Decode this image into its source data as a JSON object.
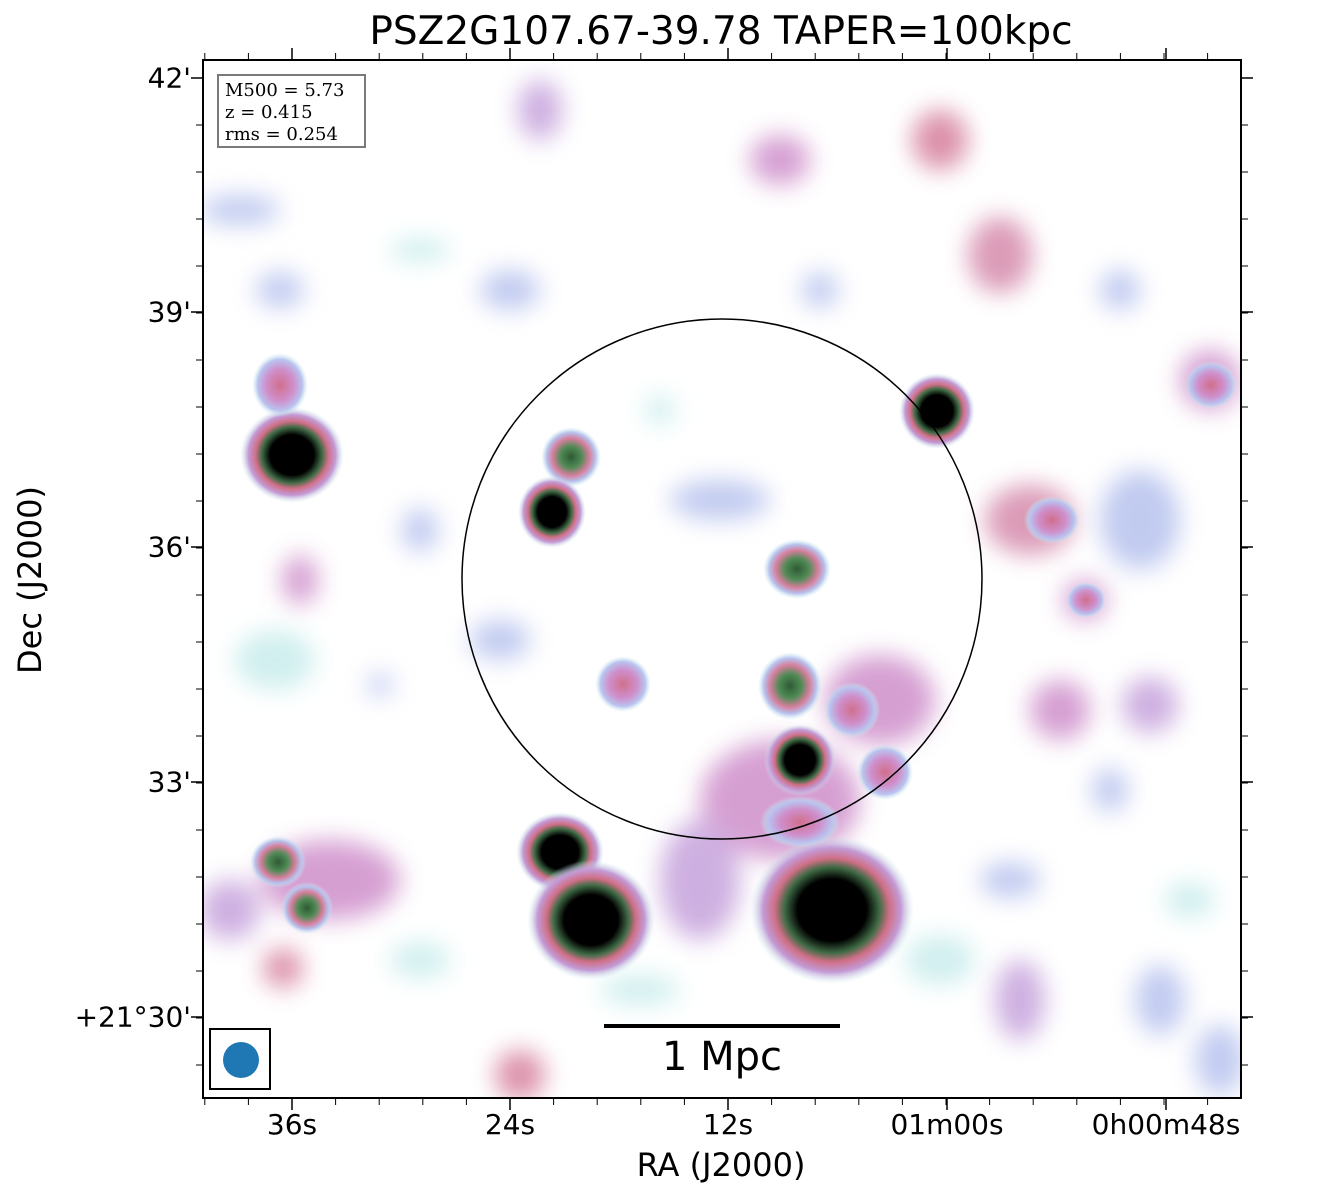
{
  "title": "PSZ2G107.67-39.78 TAPER=100kpc",
  "axes": {
    "xlabel": "RA (J2000)",
    "ylabel": "Dec (J2000)",
    "xticks": [
      "36s",
      "24s",
      "12s",
      "01m00s",
      "0h00m48s"
    ],
    "yticks": [
      "42'",
      "39'",
      "36'",
      "33'",
      "+21°30'"
    ]
  },
  "info": {
    "mass": "M500 = 5.73",
    "redshift": "z = 0.415",
    "rms": "rms = 0.254"
  },
  "scale_bar": {
    "label": "1 Mpc"
  },
  "colors": {
    "beam": "#1f77b4",
    "colormap": [
      "#ffffff",
      "#c9ecec",
      "#b7c2ee",
      "#cf8fcb",
      "#d67f9c",
      "#4f8a55",
      "#000000"
    ]
  }
}
